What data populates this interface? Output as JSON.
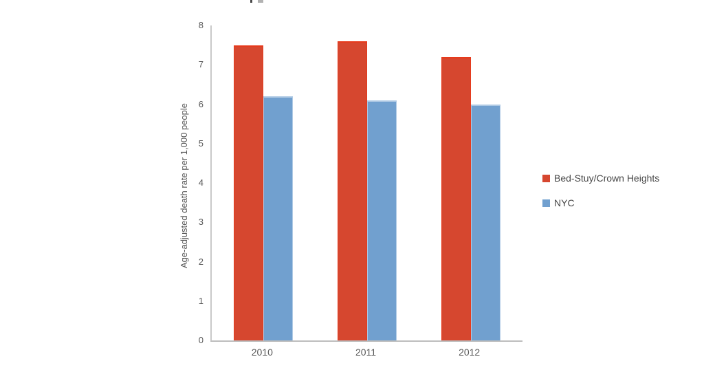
{
  "chart_data": {
    "type": "bar",
    "title": "",
    "categories": [
      "2010",
      "2011",
      "2012"
    ],
    "series": [
      {
        "name": "Bed-Stuy/Crown Heights",
        "values": [
          7.5,
          7.6,
          7.2
        ],
        "color": "#d6472f",
        "edge_color": "#e63a1c"
      },
      {
        "name": "NYC",
        "values": [
          6.2,
          6.1,
          6.0
        ],
        "color": "#71a0cf",
        "edge_color": "#aec9e4"
      }
    ],
    "xlabel": "",
    "ylabel": "Age-adjusted death rate per 1,000 people",
    "ylim": [
      0,
      8
    ],
    "y_ticks": [
      0,
      1,
      2,
      3,
      4,
      5,
      6,
      7,
      8
    ],
    "grid": false,
    "legend_position": "right",
    "axis_line_color": "#bdbdbd",
    "tick_label_color": "#595959",
    "legend_text_color": "#474747",
    "background_color": "#ffffff"
  }
}
